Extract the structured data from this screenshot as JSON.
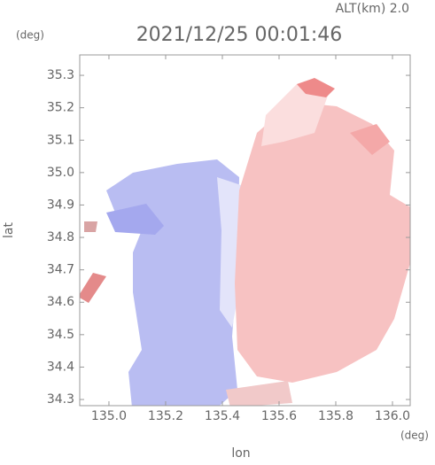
{
  "chart_data": {
    "type": "radar-map",
    "title": "2021/12/25 00:01:46",
    "subtitle": "ALT(km) 2.0",
    "x_label": "lon",
    "y_label": "lat",
    "x_unit": "(deg)",
    "y_unit": "(deg)",
    "xlim": [
      134.897,
      136.0625
    ],
    "ylim": [
      34.281,
      35.363
    ],
    "xticks": [
      {
        "value": 135,
        "label": "135.0"
      },
      135.2,
      135.4,
      135.6,
      135.8,
      {
        "value": 136,
        "label": "136.0"
      }
    ],
    "yticks": [
      34.3,
      34.4,
      34.5,
      34.6,
      34.7,
      34.8,
      34.9,
      {
        "value": 35,
        "label": "35.0"
      },
      35.1,
      35.2,
      35.3
    ]
  }
}
